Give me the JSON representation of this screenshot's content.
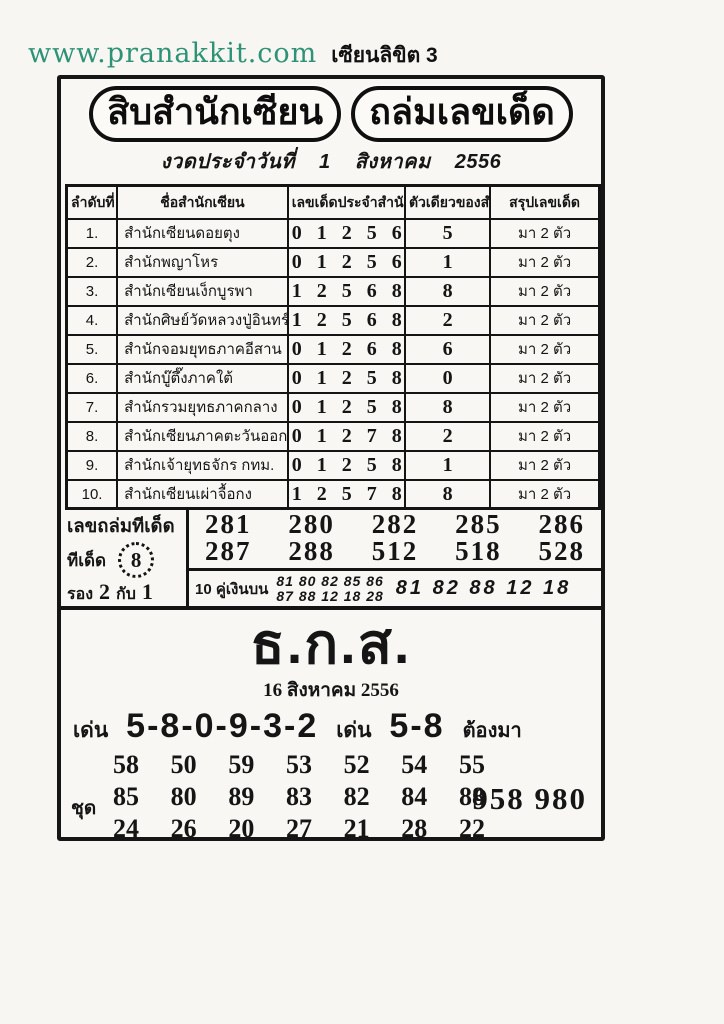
{
  "colors": {
    "watermark_green": "#2e9277",
    "ink": "#151515",
    "paper": "#f7f6f2"
  },
  "watermark": {
    "url": "www.pranakkit.com",
    "title": "เซียนลิขิต 3"
  },
  "banner": {
    "left": "สิบสำนักเซียน",
    "right": "ถล่มเลขเด็ด",
    "subtitle": "งวดประจำวันที่ 1 สิงหาคม 2556"
  },
  "table": {
    "headers": [
      "ลำดับที่",
      "ชื่อสำนักเซียน",
      "เลขเด็ดประจำสำนัก",
      "ตัวเดียวของสำนัก",
      "สรุปเลขเด็ด"
    ],
    "rows": [
      {
        "no": "1.",
        "name": "สำนักเซียนดอยตุง",
        "numbers": "0 1 2 5 6",
        "single": "5",
        "summary": "มา 2 ตัว"
      },
      {
        "no": "2.",
        "name": "สำนักพญาโหร",
        "numbers": "0 1 2 5 6",
        "single": "1",
        "summary": "มา 2 ตัว"
      },
      {
        "no": "3.",
        "name": "สำนักเซียนเง็กบูรพา",
        "numbers": "1 2 5 6 8",
        "single": "8",
        "summary": "มา 2 ตัว"
      },
      {
        "no": "4.",
        "name": "สำนักศิษย์วัดหลวงปู่อินทร์",
        "numbers": "1 2 5 6 8",
        "single": "2",
        "summary": "มา 2 ตัว"
      },
      {
        "no": "5.",
        "name": "สำนักจอมยุทธภาคอีสาน",
        "numbers": "0 1 2 6 8",
        "single": "6",
        "summary": "มา 2 ตัว"
      },
      {
        "no": "6.",
        "name": "สำนักบู๊ตึ๊งภาคใต้",
        "numbers": "0 1 2 5 8",
        "single": "0",
        "summary": "มา 2 ตัว"
      },
      {
        "no": "7.",
        "name": "สำนักรวมยุทธภาคกลาง",
        "numbers": "0 1 2 5 8",
        "single": "8",
        "summary": "มา 2 ตัว"
      },
      {
        "no": "8.",
        "name": "สำนักเซียนภาคตะวันออก",
        "numbers": "0 1 2 7 8",
        "single": "2",
        "summary": "มา 2 ตัว"
      },
      {
        "no": "9.",
        "name": "สำนักเจ้ายุทธจักร กทม.",
        "numbers": "0 1 2 5 8",
        "single": "1",
        "summary": "มา 2 ตัว"
      },
      {
        "no": "10.",
        "name": "สำนักเซียนเผ่าจื้อกง",
        "numbers": "1 2 5 7 8",
        "single": "8",
        "summary": "มา 2 ตัว"
      }
    ]
  },
  "hot": {
    "title": "เลขถล่มทีเด็ด",
    "tip_label": "ทีเด็ด",
    "tip_number": "8",
    "backup_label": "รอง",
    "backup_num1": "2",
    "backup_conj": "กับ",
    "backup_num2": "1",
    "rows": [
      [
        "281",
        "280",
        "282",
        "285",
        "286"
      ],
      [
        "287",
        "288",
        "512",
        "518",
        "528"
      ]
    ],
    "pairs_label": "10 คู่เงินบน",
    "pairs_small": [
      "81 80 82 85 86",
      "87 88 12 18 28"
    ],
    "pairs_big": "81 82 88 12 18"
  },
  "bank": {
    "title": "ธ.ก.ส.",
    "date": "16 สิงหาคม 2556",
    "den_label": "เด่น",
    "den_numbers": "5-8-0-9-3-2",
    "den2_label": "เด่น",
    "den2_numbers": "5-8",
    "must_label": "ต้องมา",
    "set_label": "ชุด",
    "set_rows": [
      [
        "58",
        "50",
        "59",
        "53",
        "52",
        "54",
        "55"
      ],
      [
        "85",
        "80",
        "89",
        "83",
        "82",
        "84",
        "88"
      ],
      [
        "24",
        "26",
        "20",
        "27",
        "21",
        "28",
        "22"
      ]
    ],
    "triples": "958 980"
  }
}
